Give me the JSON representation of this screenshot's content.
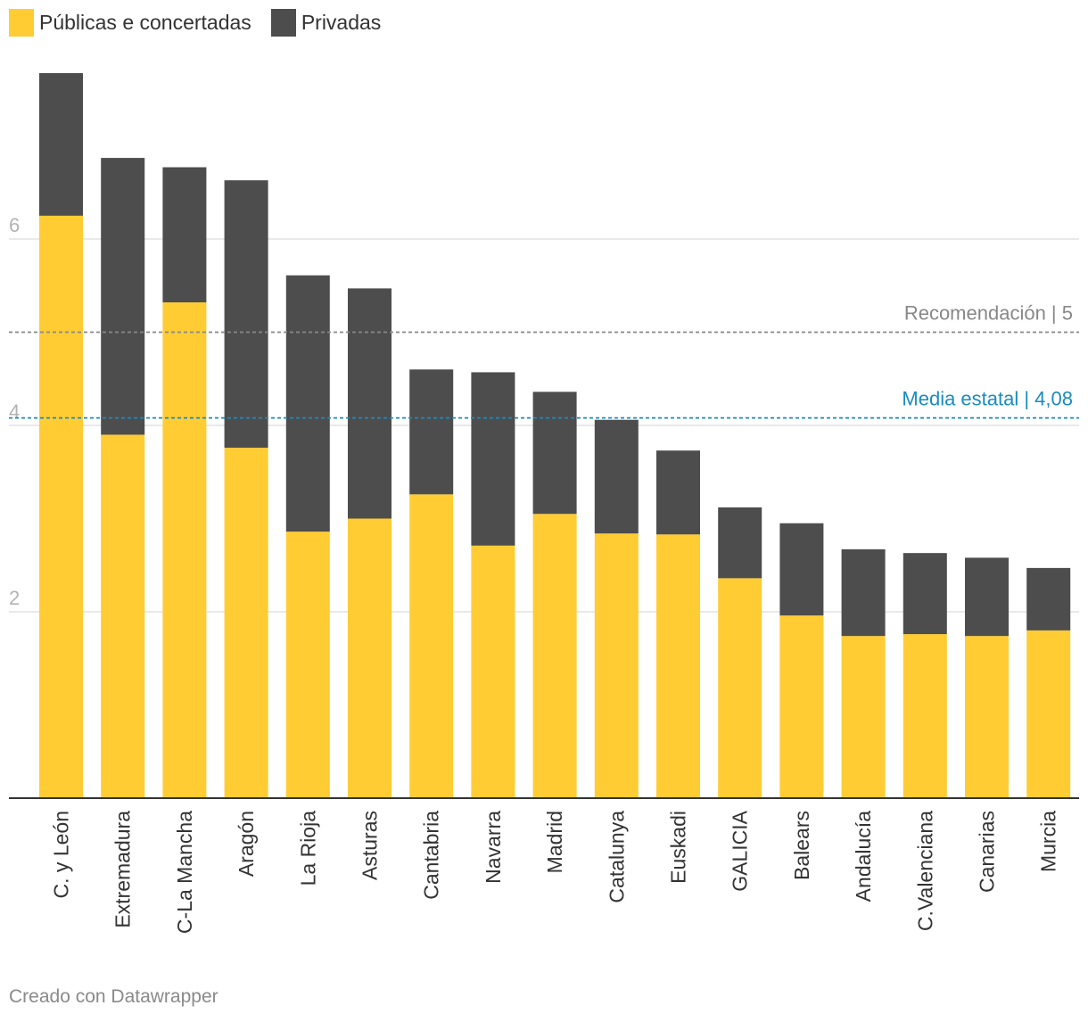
{
  "chart_data": {
    "type": "bar",
    "stacked": true,
    "categories": [
      "C. y León",
      "Extremadura",
      "C-La Mancha",
      "Aragón",
      "La Rioja",
      "Asturas",
      "Cantabria",
      "Navarra",
      "Madrid",
      "Catalunya",
      "Euskadi",
      "GALICIA",
      "Balears",
      "Andalucía",
      "C.Valenciana",
      "Canarias",
      "Murcia"
    ],
    "series": [
      {
        "name": "Públicas e concertadas",
        "color": "#FFCC33",
        "values": [
          6.25,
          3.9,
          5.32,
          3.76,
          2.86,
          3.0,
          3.26,
          2.71,
          3.05,
          2.84,
          2.83,
          2.36,
          1.96,
          1.74,
          1.76,
          1.74,
          1.8
        ]
      },
      {
        "name": "Privadas",
        "color": "#4D4D4D",
        "values": [
          1.53,
          2.97,
          1.45,
          2.87,
          2.75,
          2.47,
          1.34,
          1.86,
          1.31,
          1.22,
          0.9,
          0.76,
          0.99,
          0.93,
          0.87,
          0.84,
          0.67
        ]
      }
    ],
    "ylim": [
      0,
      7.8
    ],
    "yticks": [
      2,
      4,
      6
    ],
    "ytick_labels": [
      "2",
      "4",
      "6"
    ],
    "grid": true,
    "legend_position": "top-left",
    "reference_lines": [
      {
        "value": 5,
        "label": "Recomendación | 5",
        "color": "#888888"
      },
      {
        "value": 4.08,
        "label": "Media estatal | 4,08",
        "color": "#1A8BBF"
      }
    ]
  },
  "footer": {
    "credit": "Creado con Datawrapper"
  }
}
